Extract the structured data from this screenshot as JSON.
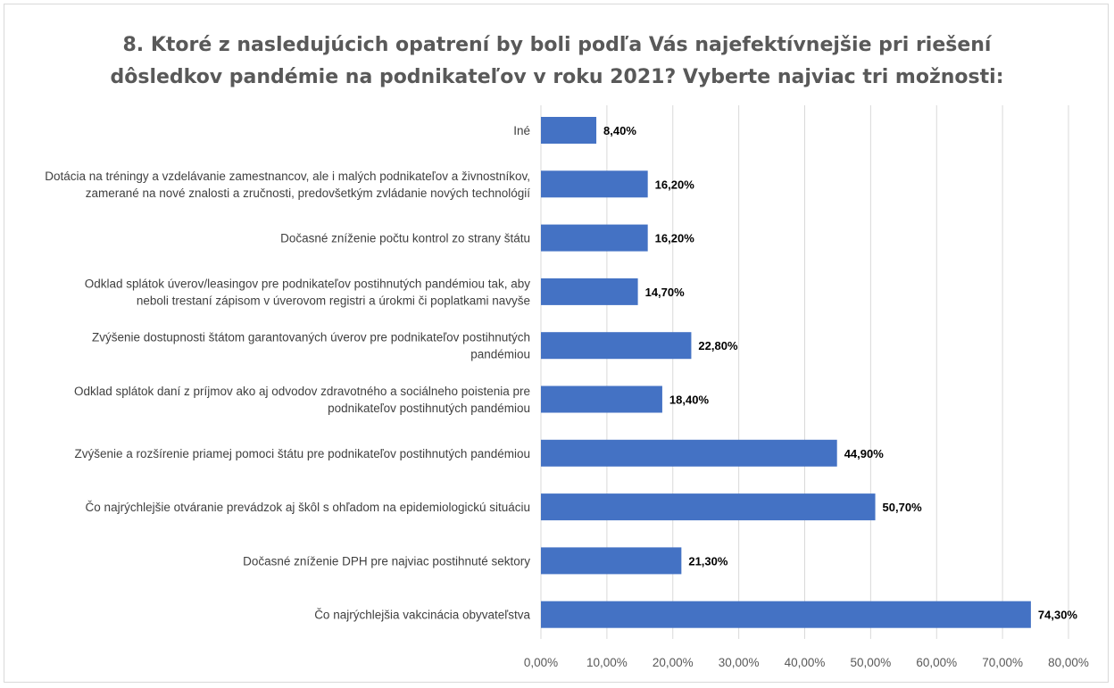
{
  "chart_data": {
    "type": "bar",
    "orientation": "horizontal",
    "title": [
      "8. Ktoré z nasledujúcich opatrení by boli podľa Vás najefektívnejšie pri riešení",
      "dôsledkov pandémie na podnikateľov v roku 2021? Vyberte najviac tri možnosti:"
    ],
    "categories": [
      [
        "Iné"
      ],
      [
        "Dotácia na tréningy a vzdelávanie zamestnancov, ale i malých podnikateľov a živnostníkov,",
        "zamerané na nové znalosti a zručnosti, predovšetkým zvládanie nových technológií"
      ],
      [
        "Dočasné zníženie počtu kontrol zo strany štátu"
      ],
      [
        "Odklad splátok úverov/leasingov pre podnikateľov postihnutých pandémiou tak, aby",
        "neboli trestaní zápisom v úverovom registri a úrokmi či poplatkami navyše"
      ],
      [
        "Zvýšenie dostupnosti štátom garantovaných úverov pre podnikateľov postihnutých",
        "pandémiou"
      ],
      [
        "Odklad splátok daní z príjmov ako aj odvodov zdravotného a sociálneho poistenia pre",
        "podnikateľov postihnutých pandémiou"
      ],
      [
        "Zvýšenie a rozšírenie priamej pomoci štátu pre podnikateľov postihnutých pandémiou"
      ],
      [
        "Čo najrýchlejšie otváranie prevádzok aj škôl s ohľadom na epidemiologickú situáciu"
      ],
      [
        "Dočasné zníženie DPH pre najviac postihnuté sektory"
      ],
      [
        "Čo najrýchlejšia vakcinácia obyvateľstva"
      ]
    ],
    "values": [
      8.4,
      16.2,
      16.2,
      14.7,
      22.8,
      18.4,
      44.9,
      50.7,
      21.3,
      74.3
    ],
    "data_labels": [
      "8,40%",
      "16,20%",
      "16,20%",
      "14,70%",
      "22,80%",
      "18,40%",
      "44,90%",
      "50,70%",
      "21,30%",
      "74,30%"
    ],
    "xlim": [
      0,
      80
    ],
    "xticks": [
      0,
      10,
      20,
      30,
      40,
      50,
      60,
      70,
      80
    ],
    "xtick_labels": [
      "0,00%",
      "10,00%",
      "20,00%",
      "30,00%",
      "40,00%",
      "50,00%",
      "60,00%",
      "70,00%",
      "80,00%"
    ],
    "xlabel": "",
    "ylabel": "",
    "grid": true,
    "legend": "none",
    "bar_color": "#4472C4",
    "grid_color": "#d9d9d9"
  }
}
